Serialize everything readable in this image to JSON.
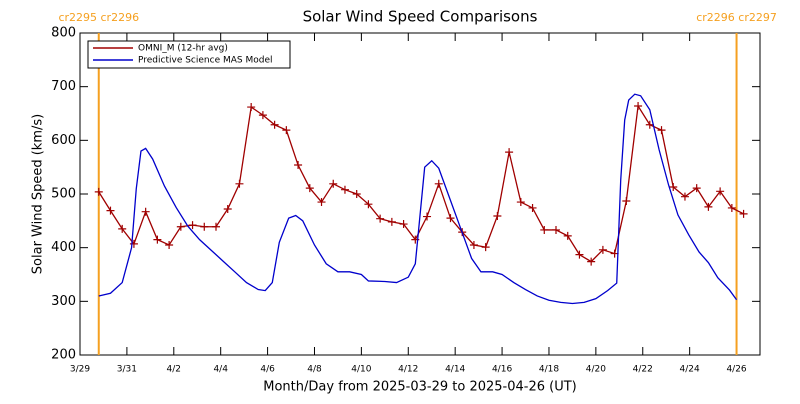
{
  "chart_data": {
    "type": "line",
    "title": "Solar Wind Speed Comparisons",
    "xlabel": "Month/Day from 2025-03-29 to 2025-04-26 (UT)",
    "ylabel": "Solar Wind Speed (km/s)",
    "xlim": [
      0,
      29
    ],
    "ylim": [
      200,
      800
    ],
    "yticks": [
      200,
      300,
      400,
      500,
      600,
      700,
      800
    ],
    "xticks": [
      {
        "value": 0,
        "label": "3/29"
      },
      {
        "value": 2,
        "label": "3/31"
      },
      {
        "value": 4,
        "label": "4/2"
      },
      {
        "value": 6,
        "label": "4/4"
      },
      {
        "value": 8,
        "label": "4/6"
      },
      {
        "value": 10,
        "label": "4/8"
      },
      {
        "value": 12,
        "label": "4/10"
      },
      {
        "value": 14,
        "label": "4/12"
      },
      {
        "value": 16,
        "label": "4/14"
      },
      {
        "value": 18,
        "label": "4/16"
      },
      {
        "value": 20,
        "label": "4/18"
      },
      {
        "value": 22,
        "label": "4/20"
      },
      {
        "value": 24,
        "label": "4/22"
      },
      {
        "value": 26,
        "label": "4/24"
      },
      {
        "value": 28,
        "label": "4/26"
      }
    ],
    "legend": "upper left",
    "boundaries": [
      {
        "x": 0.8,
        "label": "cr2295 cr2296",
        "color": "#f5a020"
      },
      {
        "x": 28.0,
        "label": "cr2296 cr2297",
        "color": "#f5a020"
      }
    ],
    "series": [
      {
        "name": "OMNI_M (12-hr avg)",
        "color": "#a00000",
        "marker": "+",
        "x": [
          0.8,
          1.3,
          1.8,
          2.3,
          2.8,
          3.3,
          3.8,
          4.3,
          4.8,
          5.3,
          5.8,
          6.3,
          6.8,
          7.3,
          7.8,
          8.3,
          8.8,
          9.3,
          9.8,
          10.3,
          10.8,
          11.3,
          11.8,
          12.3,
          12.8,
          13.3,
          13.8,
          14.3,
          14.8,
          15.3,
          15.8,
          16.3,
          16.8,
          17.3,
          17.8,
          18.3,
          18.8,
          19.3,
          19.8,
          20.3,
          20.8,
          21.3,
          21.8,
          22.3,
          22.8,
          23.3,
          23.8,
          24.3,
          24.8,
          25.3,
          25.8,
          26.3,
          26.8,
          27.3,
          27.8,
          28.3
        ],
        "values": [
          504,
          469,
          435,
          407,
          467,
          415,
          405,
          439,
          442,
          439,
          439,
          472,
          519,
          662,
          647,
          629,
          619,
          554,
          511,
          485,
          519,
          508,
          500,
          481,
          454,
          448,
          444,
          415,
          458,
          519,
          455,
          429,
          405,
          401,
          459,
          578,
          485,
          474,
          433,
          433,
          422,
          387,
          374,
          396,
          389,
          487,
          664,
          629,
          619,
          513,
          495,
          511,
          476,
          505,
          474,
          463
        ]
      },
      {
        "name": "Predictive Science MAS Model",
        "color": "#0000cc",
        "x": [
          0.8,
          1.3,
          1.8,
          2.2,
          2.4,
          2.6,
          2.8,
          3.1,
          3.6,
          4.1,
          4.6,
          5.1,
          5.6,
          6.1,
          6.6,
          7.1,
          7.6,
          7.9,
          8.2,
          8.5,
          8.9,
          9.2,
          9.5,
          10.0,
          10.5,
          11.0,
          11.5,
          12.0,
          12.3,
          13.0,
          13.5,
          14.0,
          14.3,
          14.7,
          15.0,
          15.3,
          15.7,
          16.2,
          16.7,
          17.1,
          17.6,
          18.0,
          18.5,
          19.0,
          19.5,
          20.0,
          20.5,
          21.0,
          21.5,
          22.0,
          22.5,
          22.89,
          23.06,
          23.23,
          23.4,
          23.66,
          23.91,
          24.3,
          24.7,
          25.1,
          25.5,
          25.96,
          26.4,
          26.8,
          27.2,
          27.7,
          28.0
        ],
        "values": [
          310,
          315,
          335,
          400,
          510,
          580,
          585,
          565,
          515,
          475,
          440,
          415,
          395,
          375,
          355,
          335,
          322,
          320,
          335,
          410,
          455,
          460,
          450,
          405,
          370,
          355,
          355,
          350,
          338,
          337,
          335,
          345,
          370,
          550,
          562,
          548,
          500,
          440,
          380,
          355,
          355,
          350,
          335,
          322,
          310,
          302,
          298,
          296,
          298,
          305,
          320,
          334,
          526,
          638,
          675,
          686,
          683,
          657,
          582,
          517,
          461,
          424,
          392,
          372,
          344,
          321,
          303
        ]
      }
    ]
  }
}
